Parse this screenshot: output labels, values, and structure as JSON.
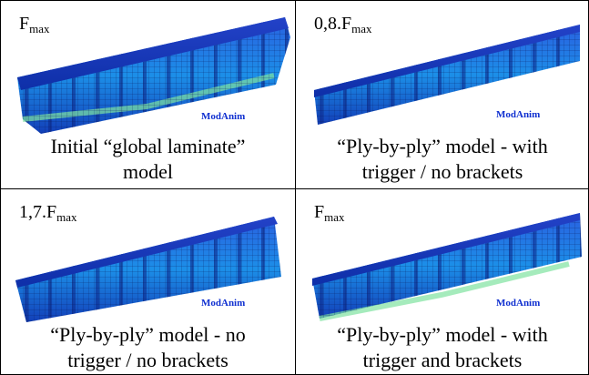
{
  "panels": [
    {
      "load_label": {
        "base": "F",
        "subscript": "max"
      },
      "watermark": "ModAnim",
      "caption_lines": [
        "Initial “global laminate”",
        "model"
      ]
    },
    {
      "load_label": {
        "base": "0,8.F",
        "subscript": "max"
      },
      "watermark": "ModAnim",
      "caption_lines": [
        "“Ply-by-ply” model - with",
        "trigger / no brackets"
      ]
    },
    {
      "load_label": {
        "base": "1,7.F",
        "subscript": "max"
      },
      "watermark": "ModAnim",
      "caption_lines": [
        "“Ply-by-ply” model - no",
        "trigger / no brackets"
      ]
    },
    {
      "load_label": {
        "base": "F",
        "subscript": "max"
      },
      "watermark": "ModAnim",
      "caption_lines": [
        "“Ply-by-ply” model - with",
        "trigger and brackets"
      ]
    }
  ]
}
